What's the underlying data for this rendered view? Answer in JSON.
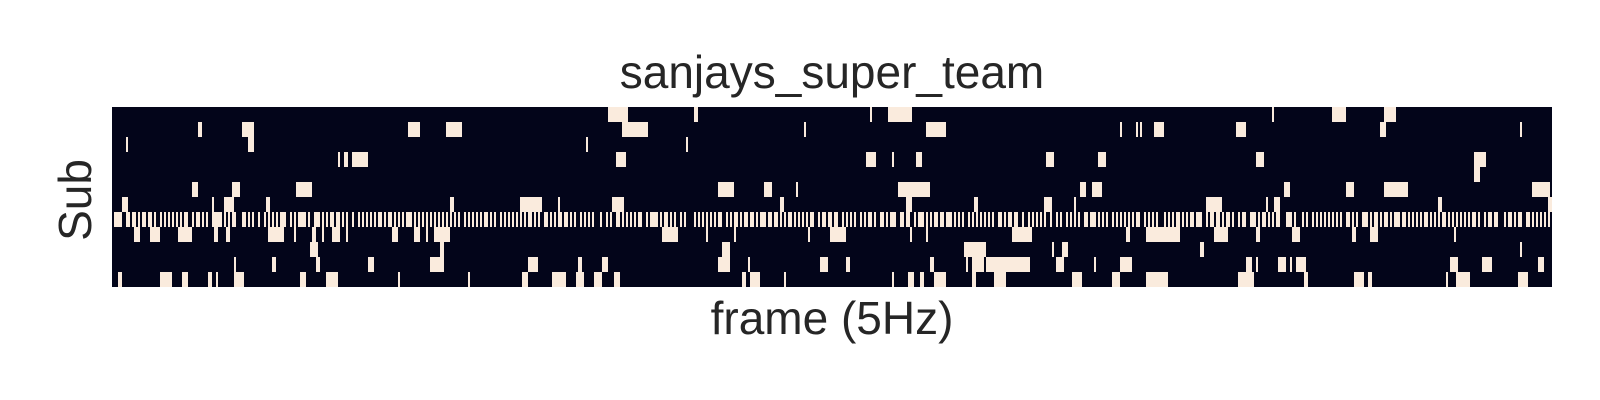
{
  "chart_data": {
    "type": "heatmap",
    "title": "sanjays_super_team",
    "xlabel": "frame (5Hz)",
    "ylabel": "Sub",
    "rows": 12,
    "frames": 720,
    "value_range": [
      0,
      1
    ],
    "colors": {
      "low": "#03051a",
      "high": "#faebdd"
    },
    "row_on_probability": [
      0.04,
      0.1,
      0.02,
      0.05,
      0.02,
      0.08,
      0.1,
      0.55,
      0.18,
      0.08,
      0.2,
      0.2
    ],
    "grid": false,
    "ticks": false,
    "colorbar": false
  }
}
